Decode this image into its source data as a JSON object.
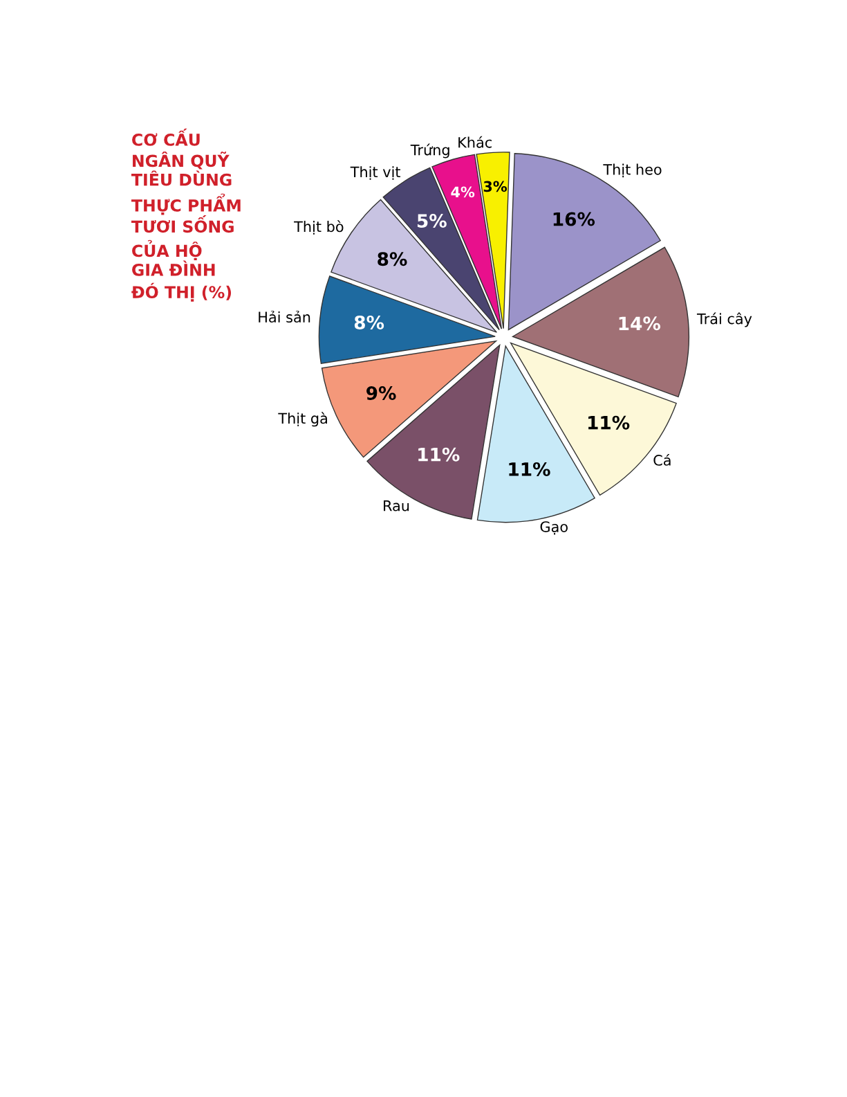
{
  "chart_data": {
    "type": "pie",
    "title": "CƠ CẤU\nNGÂN QUỸ\nTIÊU DÙNG\nTHỰC PHẨM\nTƯƠI SỐNG\nCỦA HỘ\nGIA ĐÌNH\nĐÓ THỊ (%)",
    "categories": [
      "Thịt heo",
      "Trái cây",
      "Cá",
      "Gạo",
      "Rau",
      "Thịt gà",
      "Hải sản",
      "Thịt bò",
      "Thịt vịt",
      "Trứng",
      "Khác"
    ],
    "values": [
      16,
      14,
      11,
      11,
      11,
      9,
      8,
      8,
      5,
      4,
      3
    ],
    "colors": [
      "#9b93c9",
      "#a07075",
      "#fdf8d8",
      "#c8eaf8",
      "#7a5068",
      "#f4987a",
      "#1e6aa0",
      "#c8c3e2",
      "#4a4470",
      "#e8108c",
      "#f8f000"
    ],
    "value_labels": [
      "16%",
      "14%",
      "11%",
      "11%",
      "11%",
      "9%",
      "8%",
      "8%",
      "5%",
      "4%",
      "3%"
    ]
  }
}
